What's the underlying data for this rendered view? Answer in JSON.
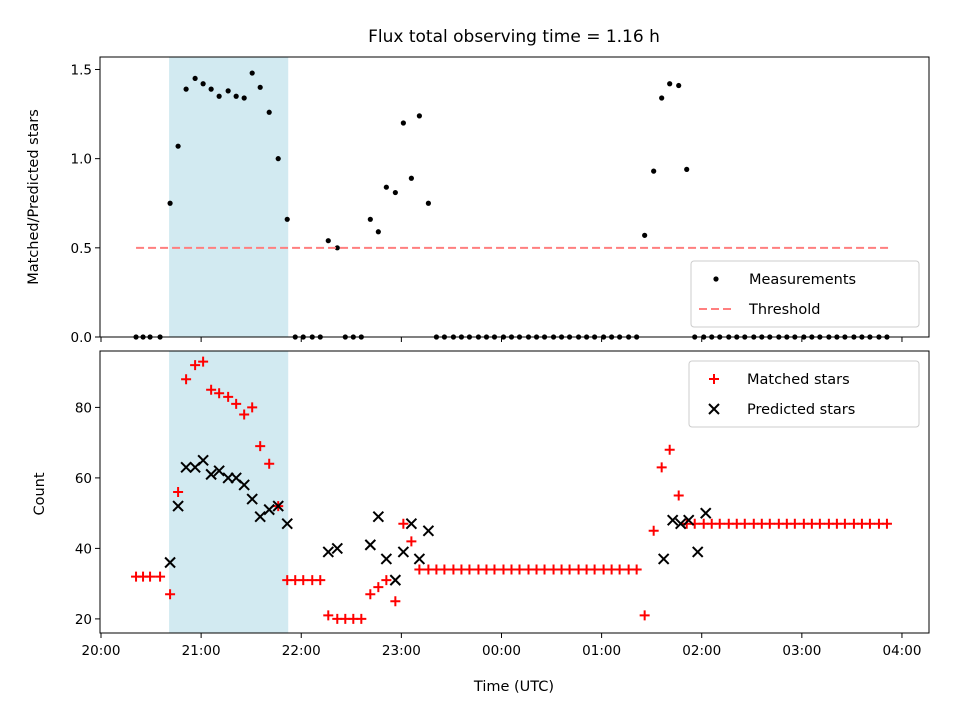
{
  "chart_data": {
    "type": "scatter",
    "title": "Flux total observing time = 1.16 h",
    "xlabel": "Time (UTC)",
    "x_ticks": [
      "20:00",
      "21:00",
      "22:00",
      "23:00",
      "00:00",
      "01:00",
      "02:00",
      "03:00",
      "04:00"
    ],
    "x_range_hours": [
      19.99,
      28.27
    ],
    "shaded_interval_hours": [
      20.68,
      21.87
    ],
    "shade_color": "#add8e6",
    "panels": [
      {
        "ylabel": "Matched/Predicted stars",
        "ylim": [
          0,
          1.57
        ],
        "y_ticks": [
          0.0,
          0.5,
          1.0,
          1.5
        ],
        "y_tick_labels": [
          "0.0",
          "0.5",
          "1.0",
          "1.5"
        ],
        "legend_position": "lower right",
        "series": [
          {
            "name": "Measurements",
            "marker": "dot",
            "color": "#000000",
            "x": [
              20.35,
              20.42,
              20.49,
              20.59,
              20.69,
              20.77,
              20.85,
              20.94,
              21.02,
              21.1,
              21.18,
              21.27,
              21.35,
              21.43,
              21.51,
              21.59,
              21.68,
              21.77,
              21.86,
              21.94,
              22.02,
              22.11,
              22.19,
              22.27,
              22.36,
              22.44,
              22.52,
              22.6,
              22.69,
              22.77,
              22.85,
              22.94,
              23.02,
              23.1,
              23.18,
              23.27,
              23.35,
              23.43,
              23.52,
              23.6,
              23.68,
              23.77,
              23.85,
              23.93,
              24.02,
              24.1,
              24.18,
              24.27,
              24.35,
              24.43,
              24.52,
              24.6,
              24.68,
              24.77,
              24.85,
              24.93,
              25.02,
              25.1,
              25.18,
              25.27,
              25.35,
              25.43,
              25.52,
              25.6,
              25.68,
              25.77,
              25.85,
              25.93,
              26.02,
              26.1,
              26.18,
              26.27,
              26.35,
              26.43,
              26.52,
              26.6,
              26.68,
              26.77,
              26.85,
              26.93,
              27.02,
              27.1,
              27.18,
              27.27,
              27.35,
              27.43,
              27.52,
              27.6,
              27.68,
              27.77,
              27.85
            ],
            "y": [
              0,
              0,
              0,
              0,
              0.75,
              1.07,
              1.39,
              1.45,
              1.42,
              1.39,
              1.35,
              1.38,
              1.35,
              1.34,
              1.48,
              1.4,
              1.26,
              1.0,
              0.66,
              0,
              0,
              0,
              0,
              0.54,
              0.5,
              0,
              0,
              0,
              0.66,
              0.59,
              0.84,
              0.81,
              1.2,
              0.89,
              1.24,
              0.75,
              0,
              0,
              0,
              0,
              0,
              0,
              0,
              0,
              0,
              0,
              0,
              0,
              0,
              0,
              0,
              0,
              0,
              0,
              0,
              0,
              0,
              0,
              0,
              0,
              0,
              0.57,
              0.93,
              1.34,
              1.42,
              1.41,
              0.94,
              0,
              0,
              0,
              0,
              0,
              0,
              0,
              0,
              0,
              0,
              0,
              0,
              0,
              0,
              0,
              0,
              0,
              0,
              0,
              0,
              0,
              0,
              0,
              0
            ]
          },
          {
            "name": "Threshold",
            "line": "dashed",
            "color": "#ff7f7f",
            "x": [
              20.35,
              27.87
            ],
            "y": [
              0.5,
              0.5
            ]
          }
        ]
      },
      {
        "ylabel": "Count",
        "ylim": [
          16,
          96
        ],
        "y_ticks": [
          20,
          40,
          60,
          80
        ],
        "y_tick_labels": [
          "20",
          "40",
          "60",
          "80"
        ],
        "legend_position": "upper right",
        "series": [
          {
            "name": "Matched stars",
            "marker": "plus",
            "color": "#ff0000",
            "x": [
              20.35,
              20.42,
              20.49,
              20.59,
              20.69,
              20.77,
              20.85,
              20.94,
              21.02,
              21.1,
              21.18,
              21.27,
              21.35,
              21.43,
              21.51,
              21.59,
              21.68,
              21.77,
              21.86,
              21.94,
              22.02,
              22.11,
              22.19,
              22.27,
              22.36,
              22.44,
              22.52,
              22.6,
              22.69,
              22.77,
              22.85,
              22.94,
              23.02,
              23.1,
              23.18,
              23.27,
              23.35,
              23.43,
              23.52,
              23.6,
              23.68,
              23.77,
              23.85,
              23.93,
              24.02,
              24.1,
              24.18,
              24.27,
              24.35,
              24.43,
              24.52,
              24.6,
              24.68,
              24.77,
              24.85,
              24.93,
              25.02,
              25.1,
              25.18,
              25.27,
              25.35,
              25.43,
              25.52,
              25.6,
              25.68,
              25.77,
              25.85,
              25.93,
              26.02,
              26.1,
              26.18,
              26.27,
              26.35,
              26.43,
              26.52,
              26.6,
              26.68,
              26.77,
              26.85,
              26.93,
              27.02,
              27.1,
              27.18,
              27.27,
              27.35,
              27.43,
              27.52,
              27.6,
              27.68,
              27.77,
              27.85
            ],
            "y": [
              32,
              32,
              32,
              32,
              27,
              56,
              88,
              92,
              93,
              85,
              84,
              83,
              81,
              78,
              80,
              69,
              64,
              52,
              31,
              31,
              31,
              31,
              31,
              21,
              20,
              20,
              20,
              20,
              27,
              29,
              31,
              25,
              47,
              42,
              34,
              34,
              34,
              34,
              34,
              34,
              34,
              34,
              34,
              34,
              34,
              34,
              34,
              34,
              34,
              34,
              34,
              34,
              34,
              34,
              34,
              34,
              34,
              34,
              34,
              34,
              34,
              21,
              45,
              63,
              68,
              55,
              47,
              47,
              47,
              47,
              47,
              47,
              47,
              47,
              47,
              47,
              47,
              47,
              47,
              47,
              47,
              47,
              47,
              47,
              47,
              47,
              47,
              47,
              47,
              47,
              47
            ]
          },
          {
            "name": "Predicted stars",
            "marker": "x",
            "color": "#000000",
            "x": [
              20.69,
              20.77,
              20.85,
              20.94,
              21.02,
              21.1,
              21.18,
              21.27,
              21.35,
              21.43,
              21.51,
              21.59,
              21.68,
              21.77,
              21.86,
              22.27,
              22.36,
              22.69,
              22.77,
              22.85,
              22.94,
              23.02,
              23.1,
              23.18,
              23.27,
              25.62,
              25.71,
              25.79,
              25.87,
              25.96,
              26.04
            ],
            "y": [
              36,
              52,
              63,
              63,
              65,
              61,
              62,
              60,
              60,
              58,
              54,
              49,
              51,
              52,
              47,
              39,
              40,
              41,
              49,
              37,
              31,
              39,
              47,
              37,
              45,
              37,
              48,
              47,
              48,
              39,
              50
            ]
          }
        ]
      }
    ]
  }
}
